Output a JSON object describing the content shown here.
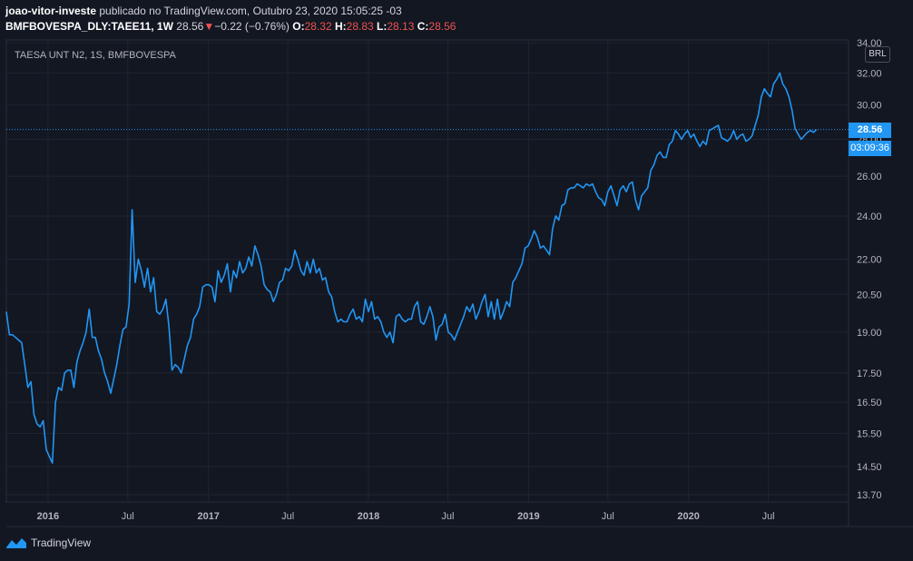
{
  "header": {
    "user": "joao-vitor-investe",
    "published": " publicado no TradingView.com, Outubro 23, 2020 15:05:25 -03",
    "symbol": "BMFBOVESPA_DLY:TAEE11, 1W",
    "last": "28.56",
    "change": "−0.22 (−0.76%)",
    "o_label": "O:",
    "o": "28.32",
    "h_label": "H:",
    "h": "28.83",
    "l_label": "L:",
    "l": "28.13",
    "c_label": "C:",
    "c": "28.56"
  },
  "chart_title": "TAESA UNT N2, 1S, BMFBOVESPA",
  "currency": "BRL",
  "last_price_label": "28.56",
  "countdown": "03:09:36",
  "footer": {
    "brand": "TradingView"
  },
  "colors": {
    "background": "#131722",
    "line": "#2196f3",
    "grid": "#1f2430",
    "down": "#ef5350"
  },
  "chart_data": {
    "type": "line",
    "title": "TAESA UNT N2, 1S, BMFBOVESPA",
    "series": [
      {
        "values": [
          [
            "2015-09-28",
            19.8
          ],
          [
            "2015-10-05",
            18.9
          ],
          [
            "2015-10-12",
            18.9
          ],
          [
            "2015-10-19",
            18.8
          ],
          [
            "2015-10-26",
            18.7
          ],
          [
            "2015-11-02",
            18.6
          ],
          [
            "2015-11-09",
            17.8
          ],
          [
            "2015-11-16",
            17.0
          ],
          [
            "2015-11-23",
            17.2
          ],
          [
            "2015-11-30",
            16.1
          ],
          [
            "2015-12-07",
            15.8
          ],
          [
            "2015-12-14",
            15.7
          ],
          [
            "2015-12-21",
            15.9
          ],
          [
            "2015-12-28",
            15.0
          ],
          [
            "2016-01-04",
            14.8
          ],
          [
            "2016-01-11",
            14.6
          ],
          [
            "2016-01-18",
            16.5
          ],
          [
            "2016-01-25",
            17.0
          ],
          [
            "2016-02-01",
            16.9
          ],
          [
            "2016-02-08",
            17.5
          ],
          [
            "2016-02-15",
            17.6
          ],
          [
            "2016-02-22",
            17.6
          ],
          [
            "2016-02-29",
            17.0
          ],
          [
            "2016-03-07",
            17.9
          ],
          [
            "2016-03-14",
            18.3
          ],
          [
            "2016-03-21",
            18.6
          ],
          [
            "2016-03-28",
            19.0
          ],
          [
            "2016-04-04",
            19.9
          ],
          [
            "2016-04-11",
            18.8
          ],
          [
            "2016-04-18",
            18.8
          ],
          [
            "2016-04-25",
            18.3
          ],
          [
            "2016-05-02",
            18.0
          ],
          [
            "2016-05-09",
            17.5
          ],
          [
            "2016-05-16",
            17.2
          ],
          [
            "2016-05-23",
            16.8
          ],
          [
            "2016-05-30",
            17.3
          ],
          [
            "2016-06-06",
            17.8
          ],
          [
            "2016-06-13",
            18.5
          ],
          [
            "2016-06-20",
            19.1
          ],
          [
            "2016-06-27",
            19.2
          ],
          [
            "2016-07-04",
            20.1
          ],
          [
            "2016-07-11",
            24.3
          ],
          [
            "2016-07-18",
            21.0
          ],
          [
            "2016-07-25",
            22.0
          ],
          [
            "2016-08-01",
            21.5
          ],
          [
            "2016-08-08",
            20.8
          ],
          [
            "2016-08-15",
            21.6
          ],
          [
            "2016-08-22",
            20.6
          ],
          [
            "2016-08-29",
            21.2
          ],
          [
            "2016-09-05",
            19.8
          ],
          [
            "2016-09-12",
            19.7
          ],
          [
            "2016-09-19",
            19.9
          ],
          [
            "2016-09-26",
            20.3
          ],
          [
            "2016-10-03",
            19.2
          ],
          [
            "2016-10-10",
            17.6
          ],
          [
            "2016-10-17",
            17.8
          ],
          [
            "2016-10-24",
            17.7
          ],
          [
            "2016-10-31",
            17.5
          ],
          [
            "2016-11-07",
            18.0
          ],
          [
            "2016-11-14",
            18.5
          ],
          [
            "2016-11-21",
            18.8
          ],
          [
            "2016-11-28",
            19.5
          ],
          [
            "2016-12-05",
            19.7
          ],
          [
            "2016-12-12",
            20.0
          ],
          [
            "2016-12-19",
            20.8
          ],
          [
            "2016-12-26",
            20.9
          ],
          [
            "2017-01-02",
            20.9
          ],
          [
            "2017-01-09",
            20.8
          ],
          [
            "2017-01-16",
            20.2
          ],
          [
            "2017-01-23",
            21.5
          ],
          [
            "2017-01-30",
            21.0
          ],
          [
            "2017-02-06",
            21.3
          ],
          [
            "2017-02-13",
            21.8
          ],
          [
            "2017-02-20",
            20.6
          ],
          [
            "2017-02-27",
            21.5
          ],
          [
            "2017-03-06",
            21.2
          ],
          [
            "2017-03-13",
            21.9
          ],
          [
            "2017-03-20",
            21.4
          ],
          [
            "2017-03-27",
            21.6
          ],
          [
            "2017-04-03",
            22.1
          ],
          [
            "2017-04-10",
            21.7
          ],
          [
            "2017-04-17",
            22.6
          ],
          [
            "2017-04-24",
            22.2
          ],
          [
            "2017-05-01",
            21.7
          ],
          [
            "2017-05-08",
            20.9
          ],
          [
            "2017-05-15",
            20.7
          ],
          [
            "2017-05-22",
            20.6
          ],
          [
            "2017-05-29",
            20.2
          ],
          [
            "2017-06-05",
            20.5
          ],
          [
            "2017-06-12",
            21.0
          ],
          [
            "2017-06-19",
            21.1
          ],
          [
            "2017-06-26",
            21.6
          ],
          [
            "2017-07-03",
            21.5
          ],
          [
            "2017-07-10",
            21.7
          ],
          [
            "2017-07-17",
            22.4
          ],
          [
            "2017-07-24",
            22.0
          ],
          [
            "2017-07-31",
            21.5
          ],
          [
            "2017-08-07",
            21.3
          ],
          [
            "2017-08-14",
            21.9
          ],
          [
            "2017-08-21",
            21.4
          ],
          [
            "2017-08-28",
            22.0
          ],
          [
            "2017-09-04",
            21.4
          ],
          [
            "2017-09-11",
            21.6
          ],
          [
            "2017-09-18",
            21.1
          ],
          [
            "2017-09-25",
            21.2
          ],
          [
            "2017-10-02",
            20.6
          ],
          [
            "2017-10-09",
            20.4
          ],
          [
            "2017-10-16",
            19.8
          ],
          [
            "2017-10-23",
            19.4
          ],
          [
            "2017-10-30",
            19.5
          ],
          [
            "2017-11-06",
            19.4
          ],
          [
            "2017-11-13",
            19.4
          ],
          [
            "2017-11-20",
            19.7
          ],
          [
            "2017-11-27",
            19.9
          ],
          [
            "2017-12-04",
            19.5
          ],
          [
            "2017-12-11",
            19.6
          ],
          [
            "2017-12-18",
            19.4
          ],
          [
            "2017-12-25",
            20.3
          ],
          [
            "2018-01-01",
            19.8
          ],
          [
            "2018-01-08",
            20.2
          ],
          [
            "2018-01-15",
            19.5
          ],
          [
            "2018-01-22",
            19.6
          ],
          [
            "2018-01-29",
            19.4
          ],
          [
            "2018-02-05",
            19.0
          ],
          [
            "2018-02-12",
            18.8
          ],
          [
            "2018-02-19",
            19.0
          ],
          [
            "2018-02-26",
            18.6
          ],
          [
            "2018-03-05",
            19.6
          ],
          [
            "2018-03-12",
            19.7
          ],
          [
            "2018-03-19",
            19.5
          ],
          [
            "2018-03-26",
            19.4
          ],
          [
            "2018-04-02",
            19.5
          ],
          [
            "2018-04-09",
            19.5
          ],
          [
            "2018-04-16",
            20.0
          ],
          [
            "2018-04-23",
            20.2
          ],
          [
            "2018-04-30",
            19.4
          ],
          [
            "2018-05-07",
            19.3
          ],
          [
            "2018-05-14",
            19.6
          ],
          [
            "2018-05-21",
            20.0
          ],
          [
            "2018-05-28",
            19.6
          ],
          [
            "2018-06-04",
            18.7
          ],
          [
            "2018-06-11",
            19.2
          ],
          [
            "2018-06-18",
            19.3
          ],
          [
            "2018-06-25",
            19.7
          ],
          [
            "2018-07-02",
            19.0
          ],
          [
            "2018-07-09",
            18.9
          ],
          [
            "2018-07-16",
            18.7
          ],
          [
            "2018-07-23",
            19.0
          ],
          [
            "2018-07-30",
            19.3
          ],
          [
            "2018-08-06",
            19.6
          ],
          [
            "2018-08-13",
            20.0
          ],
          [
            "2018-08-20",
            19.8
          ],
          [
            "2018-08-27",
            20.1
          ],
          [
            "2018-09-03",
            19.5
          ],
          [
            "2018-09-10",
            19.8
          ],
          [
            "2018-09-17",
            20.2
          ],
          [
            "2018-09-24",
            20.5
          ],
          [
            "2018-10-01",
            19.6
          ],
          [
            "2018-10-08",
            20.2
          ],
          [
            "2018-10-15",
            19.5
          ],
          [
            "2018-10-22",
            20.3
          ],
          [
            "2018-10-29",
            19.5
          ],
          [
            "2018-11-05",
            19.8
          ],
          [
            "2018-11-12",
            20.2
          ],
          [
            "2018-11-19",
            20.0
          ],
          [
            "2018-11-26",
            21.0
          ],
          [
            "2018-12-03",
            21.2
          ],
          [
            "2018-12-10",
            21.5
          ],
          [
            "2018-12-17",
            21.8
          ],
          [
            "2018-12-24",
            22.5
          ],
          [
            "2018-12-31",
            22.6
          ],
          [
            "2019-01-07",
            22.9
          ],
          [
            "2019-01-14",
            23.3
          ],
          [
            "2019-01-21",
            23.0
          ],
          [
            "2019-01-28",
            22.5
          ],
          [
            "2019-02-04",
            22.6
          ],
          [
            "2019-02-11",
            22.4
          ],
          [
            "2019-02-18",
            22.2
          ],
          [
            "2019-02-25",
            23.4
          ],
          [
            "2019-03-04",
            24.0
          ],
          [
            "2019-03-11",
            23.8
          ],
          [
            "2019-03-18",
            24.5
          ],
          [
            "2019-03-25",
            24.6
          ],
          [
            "2019-04-01",
            25.3
          ],
          [
            "2019-04-08",
            25.4
          ],
          [
            "2019-04-15",
            25.4
          ],
          [
            "2019-04-22",
            25.6
          ],
          [
            "2019-04-29",
            25.5
          ],
          [
            "2019-05-06",
            25.4
          ],
          [
            "2019-05-13",
            25.6
          ],
          [
            "2019-05-20",
            25.5
          ],
          [
            "2019-05-27",
            25.6
          ],
          [
            "2019-06-03",
            25.2
          ],
          [
            "2019-06-10",
            24.9
          ],
          [
            "2019-06-17",
            24.8
          ],
          [
            "2019-06-24",
            24.5
          ],
          [
            "2019-07-01",
            25.2
          ],
          [
            "2019-07-08",
            25.5
          ],
          [
            "2019-07-15",
            25.0
          ],
          [
            "2019-07-22",
            24.5
          ],
          [
            "2019-07-29",
            25.3
          ],
          [
            "2019-08-05",
            25.5
          ],
          [
            "2019-08-12",
            25.2
          ],
          [
            "2019-08-19",
            25.6
          ],
          [
            "2019-08-26",
            25.7
          ],
          [
            "2019-09-02",
            24.8
          ],
          [
            "2019-09-09",
            24.3
          ],
          [
            "2019-09-16",
            25.0
          ],
          [
            "2019-09-23",
            25.2
          ],
          [
            "2019-09-30",
            25.4
          ],
          [
            "2019-10-07",
            26.3
          ],
          [
            "2019-10-14",
            26.6
          ],
          [
            "2019-10-21",
            27.1
          ],
          [
            "2019-10-28",
            27.3
          ],
          [
            "2019-11-04",
            27.0
          ],
          [
            "2019-11-11",
            27.0
          ],
          [
            "2019-11-18",
            27.7
          ],
          [
            "2019-11-25",
            27.9
          ],
          [
            "2019-12-02",
            28.5
          ],
          [
            "2019-12-09",
            28.3
          ],
          [
            "2019-12-16",
            28.0
          ],
          [
            "2019-12-23",
            28.3
          ],
          [
            "2019-12-30",
            28.5
          ],
          [
            "2020-01-06",
            28.1
          ],
          [
            "2020-01-13",
            28.3
          ],
          [
            "2020-01-20",
            27.9
          ],
          [
            "2020-01-27",
            27.6
          ],
          [
            "2020-02-03",
            27.9
          ],
          [
            "2020-02-10",
            27.7
          ],
          [
            "2020-02-17",
            28.5
          ],
          [
            "2020-02-24",
            28.6
          ],
          [
            "2020-03-02",
            28.7
          ],
          [
            "2020-03-09",
            28.8
          ],
          [
            "2020-03-16",
            28.1
          ],
          [
            "2020-03-23",
            28.0
          ],
          [
            "2020-03-30",
            27.9
          ],
          [
            "2020-04-06",
            28.1
          ],
          [
            "2020-04-13",
            28.5
          ],
          [
            "2020-04-20",
            28.0
          ],
          [
            "2020-04-27",
            28.2
          ],
          [
            "2020-05-04",
            28.3
          ],
          [
            "2020-05-11",
            27.9
          ],
          [
            "2020-05-18",
            28.0
          ],
          [
            "2020-05-25",
            28.2
          ],
          [
            "2020-06-01",
            28.8
          ],
          [
            "2020-06-08",
            29.4
          ],
          [
            "2020-06-15",
            30.5
          ],
          [
            "2020-06-22",
            31.0
          ],
          [
            "2020-06-29",
            30.7
          ],
          [
            "2020-07-06",
            30.5
          ],
          [
            "2020-07-13",
            31.3
          ],
          [
            "2020-07-20",
            31.6
          ],
          [
            "2020-07-27",
            32.0
          ],
          [
            "2020-08-03",
            31.3
          ],
          [
            "2020-08-10",
            31.0
          ],
          [
            "2020-08-17",
            30.5
          ],
          [
            "2020-08-24",
            29.7
          ],
          [
            "2020-08-31",
            28.6
          ],
          [
            "2020-09-07",
            28.3
          ],
          [
            "2020-09-14",
            28.0
          ],
          [
            "2020-09-21",
            28.2
          ],
          [
            "2020-09-28",
            28.4
          ],
          [
            "2020-10-05",
            28.5
          ],
          [
            "2020-10-12",
            28.4
          ],
          [
            "2020-10-19",
            28.56
          ]
        ]
      }
    ],
    "ylim": [
      13.5,
      34.2
    ],
    "log_scale": true,
    "yticks": [
      "13.70",
      "14.50",
      "15.50",
      "16.50",
      "17.50",
      "19.00",
      "20.50",
      "22.00",
      "24.00",
      "26.00",
      "28.00",
      "30.00",
      "32.00",
      "34.00"
    ],
    "xticks": [
      "2016",
      "Jul",
      "2017",
      "Jul",
      "2018",
      "Jul",
      "2019",
      "Jul",
      "2020",
      "Jul"
    ],
    "last_value": 28.56,
    "grid": true,
    "legend": "none"
  }
}
